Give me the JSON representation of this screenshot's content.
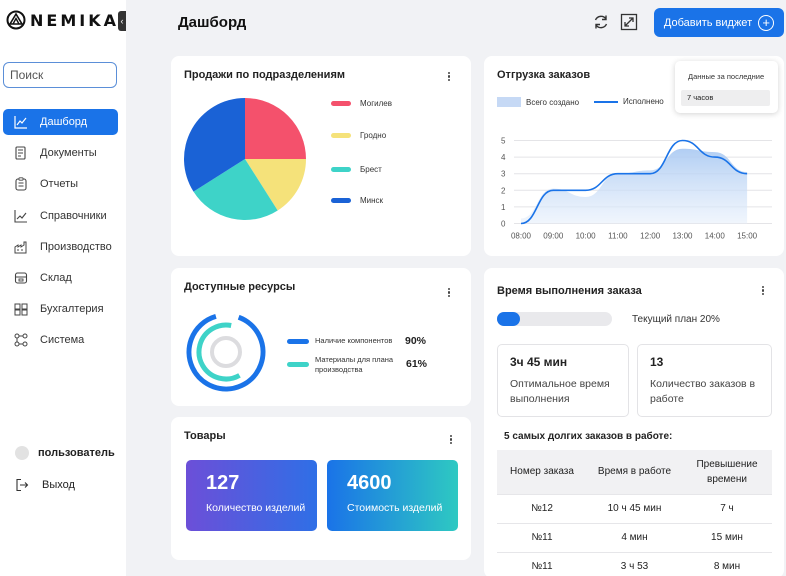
{
  "app": {
    "brand": "NEMIKA",
    "page_title": "Дашборд",
    "add_widget_label": "Добавить виджет"
  },
  "sidebar": {
    "search_placeholder": "Поиск",
    "items": [
      {
        "label": "Дашборд",
        "icon": "chart-line-icon",
        "active": true
      },
      {
        "label": "Документы",
        "icon": "document-icon"
      },
      {
        "label": "Отчеты",
        "icon": "report-icon"
      },
      {
        "label": "Справочники",
        "icon": "trend-icon"
      },
      {
        "label": "Производство",
        "icon": "factory-icon"
      },
      {
        "label": "Склад",
        "icon": "warehouse-icon"
      },
      {
        "label": "Бухгалтерия",
        "icon": "accounting-icon"
      },
      {
        "label": "Система",
        "icon": "network-icon"
      }
    ],
    "user_label": "пользователь",
    "logout_label": "Выход"
  },
  "sales_card": {
    "title": "Продажи по подразделениям",
    "legend": [
      {
        "label": "Могилев",
        "color": "#f4516c"
      },
      {
        "label": "Гродно",
        "color": "#f5e27a"
      },
      {
        "label": "Брест",
        "color": "#3ed3c8"
      },
      {
        "label": "Минск",
        "color": "#1a62d6"
      }
    ]
  },
  "resources_card": {
    "title": "Доступные ресурсы",
    "items": [
      {
        "label": "Наличие компонентов",
        "value": "90%",
        "color": "#1a73e8"
      },
      {
        "label_line1": "Материалы для плана",
        "label_line2": "производства",
        "value": "61%",
        "color": "#3ed3c8"
      }
    ]
  },
  "goods_card": {
    "title": "Товары",
    "tiles": [
      {
        "value": "127",
        "label": "Количество изделий"
      },
      {
        "value": "4600",
        "label": "Стоимость изделий"
      }
    ]
  },
  "shipment_card": {
    "title": "Отгрузка заказов",
    "legend_total": "Всего создано",
    "legend_done": "Исполнено",
    "dropdown_title": "Данные за последние",
    "dropdown_value": "7 часов"
  },
  "order_time_card": {
    "title": "Время выполнения заказа",
    "plan_label": "Текущий план 20%",
    "plan_fraction": 0.2,
    "stats": [
      {
        "value": "3ч 45 мин",
        "label_line1": "Оптимальное время",
        "label_line2": "выполнения"
      },
      {
        "value": "13",
        "label_line1": "Количество заказов в",
        "label_line2": "работе"
      }
    ],
    "top5_title": "5 самых долгих заказов в работе:",
    "table_headers": [
      "Номер заказа",
      "Время в работе",
      "Превышение",
      "времени"
    ],
    "rows": [
      {
        "id": "№12",
        "time": "10 ч 45 мин",
        "over": "7 ч"
      },
      {
        "id": "№11",
        "time": "4 мин",
        "over": "15 мин"
      },
      {
        "id": "№11",
        "time": "3 ч 53",
        "over": "8 мин"
      }
    ]
  },
  "chart_data": [
    {
      "type": "pie",
      "labels": [
        "Могилев",
        "Гродно",
        "Брест",
        "Минск"
      ],
      "values": [
        25,
        16,
        25,
        34
      ],
      "colors": [
        "#f4516c",
        "#f5e27a",
        "#3ed3c8",
        "#1a62d6"
      ]
    },
    {
      "type": "area",
      "x": [
        "08:00",
        "09:00",
        "10:00",
        "11:00",
        "12:00",
        "13:00",
        "14:00",
        "15:00"
      ],
      "ylim": [
        0,
        5
      ],
      "yticks": [
        "0",
        "1",
        "2",
        "3",
        "4",
        "5"
      ],
      "series": [
        {
          "name": "Всего создано",
          "values": [
            0.3,
            2.1,
            1.6,
            3.0,
            3.2,
            4.5,
            4.3,
            3.1
          ]
        },
        {
          "name": "Исполнено",
          "values": [
            0.0,
            2.0,
            2.0,
            3.0,
            3.0,
            5.0,
            4.0,
            3.0
          ]
        }
      ]
    }
  ]
}
